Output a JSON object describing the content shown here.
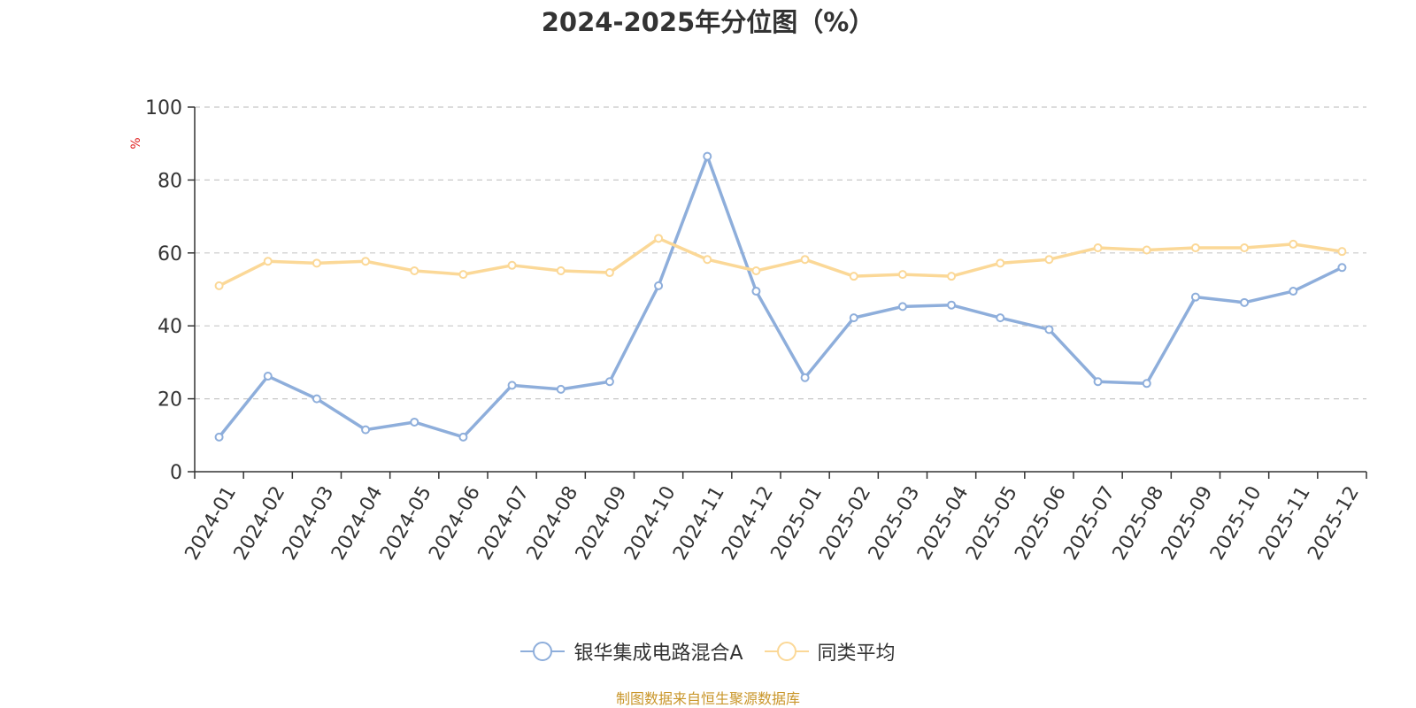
{
  "chart_data": {
    "type": "line",
    "title": "2024-2025年分位图（%）",
    "ylabel": "%",
    "xlabel": "",
    "ylim": [
      0,
      100
    ],
    "yticks": [
      0,
      20,
      40,
      60,
      80,
      100
    ],
    "grid": true,
    "legend_position": "bottom",
    "categories": [
      "2024-01",
      "2024-02",
      "2024-03",
      "2024-04",
      "2024-05",
      "2024-06",
      "2024-07",
      "2024-08",
      "2024-09",
      "2024-10",
      "2024-11",
      "2024-12",
      "2025-01",
      "2025-02",
      "2025-03",
      "2025-04",
      "2025-05",
      "2025-06",
      "2025-07",
      "2025-08",
      "2025-09",
      "2025-10",
      "2025-11",
      "2025-12"
    ],
    "series": [
      {
        "name": "银华集成电路混合A",
        "color": "#8eaedb",
        "values": [
          9.5,
          26.2,
          20,
          11.5,
          13.6,
          9.5,
          23.7,
          22.6,
          24.7,
          51,
          86.5,
          49.5,
          25.8,
          42.2,
          45.3,
          45.7,
          42.2,
          39,
          24.7,
          24.2,
          47.9,
          46.4,
          49.5,
          56
        ]
      },
      {
        "name": "同类平均",
        "color": "#fbd897",
        "values": [
          51,
          57.7,
          57.2,
          57.7,
          55.1,
          54.1,
          56.6,
          55.1,
          54.6,
          64,
          58.2,
          55.1,
          58.2,
          53.6,
          54.1,
          53.6,
          57.2,
          58.2,
          61.4,
          60.8,
          61.4,
          61.4,
          62.4,
          60.4
        ]
      }
    ]
  },
  "footer": {
    "source": "制图数据来自恒生聚源数据库"
  }
}
